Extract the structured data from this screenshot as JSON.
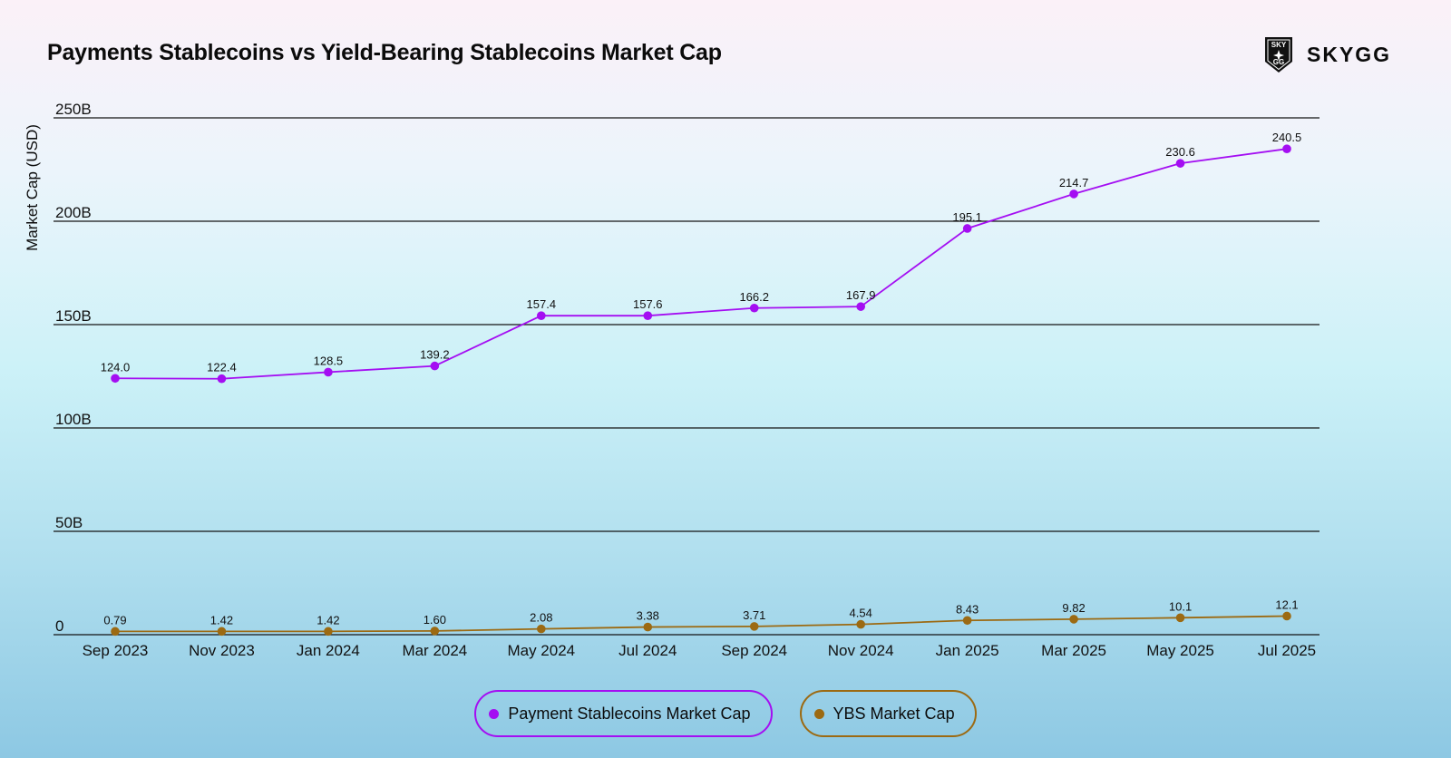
{
  "header": {
    "title": "Payments Stablecoins vs Yield-Bearing Stablecoins Market Cap",
    "logo_text": "SKYGG",
    "logo_badge_top": "SKY",
    "logo_badge_bottom": "GG"
  },
  "colors": {
    "payment": "#a40ef2",
    "ybs": "#9c6a12",
    "grid": "#141414"
  },
  "chart_data": {
    "type": "line",
    "title": "Payments Stablecoins vs Yield-Bearing Stablecoins Market Cap",
    "xlabel": "",
    "ylabel": "Market Cap (USD)",
    "ylim": [
      0,
      250
    ],
    "yticks": [
      0,
      50,
      100,
      150,
      200,
      250
    ],
    "ytick_labels": [
      "0",
      "50B",
      "100B",
      "150B",
      "200B",
      "250B"
    ],
    "grid": true,
    "legend_position": "bottom-center",
    "categories": [
      "Sep 2023",
      "Nov 2023",
      "Jan 2024",
      "Mar 2024",
      "May 2024",
      "Jul 2024",
      "Sep 2024",
      "Nov 2024",
      "Jan 2025",
      "Mar 2025",
      "May 2025",
      "Jul 2025"
    ],
    "series": [
      {
        "name": "Payment Stablecoins Market Cap",
        "values": [
          124.0,
          122.4,
          128.5,
          139.2,
          157.4,
          157.6,
          166.2,
          167.9,
          195.1,
          214.7,
          230.6,
          240.5
        ],
        "plot_values": [
          124.0,
          123.8,
          127.0,
          130.0,
          154.3,
          154.3,
          158.0,
          158.7,
          196.5,
          213.2,
          228.0,
          235.0
        ],
        "labels": [
          "124.0",
          "122.4",
          "128.5",
          "139.2",
          "157.4",
          "157.6",
          "166.2",
          "167.9",
          "195.1",
          "214.7",
          "230.6",
          "240.5"
        ]
      },
      {
        "name": "YBS Market Cap",
        "values": [
          0.79,
          1.42,
          1.42,
          1.6,
          2.08,
          3.38,
          3.71,
          4.54,
          8.43,
          9.82,
          10.1,
          12.1
        ],
        "plot_values": [
          1.6,
          1.6,
          1.6,
          1.8,
          2.8,
          3.7,
          4.0,
          5.0,
          6.9,
          7.5,
          8.2,
          9.0
        ],
        "labels": [
          "0.79",
          "1.42",
          "1.42",
          "1.60",
          "2.08",
          "3.38",
          "3.71",
          "4.54",
          "8.43",
          "9.82",
          "10.1",
          "12.1"
        ]
      }
    ]
  }
}
